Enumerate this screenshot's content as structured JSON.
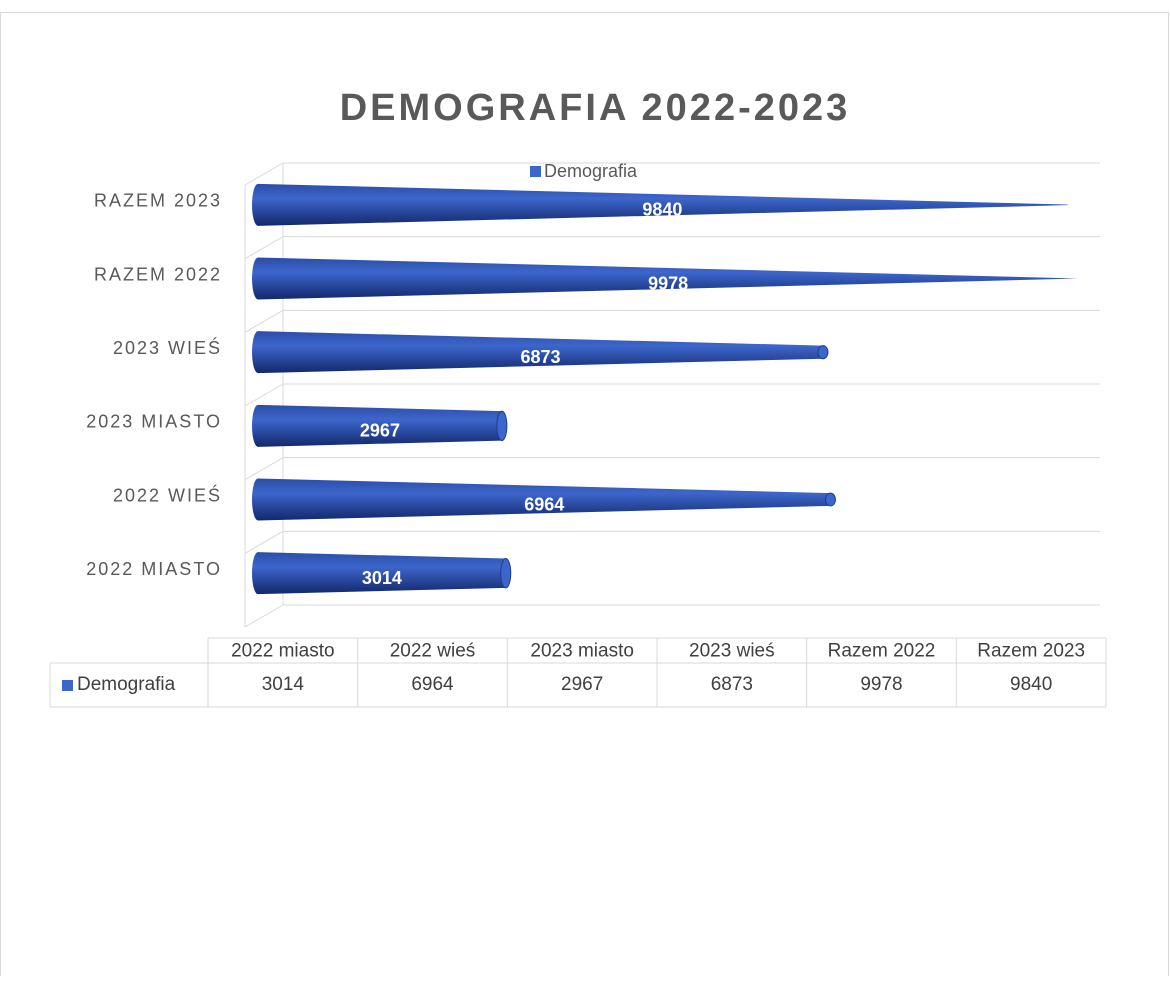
{
  "chart_data": {
    "type": "cone-bar",
    "title": "DEMOGRAFIA  2022-2023",
    "categories": [
      "2022 miasto",
      "2022 wieś",
      "2023 miasto",
      "2023 wieś",
      "Razem 2022",
      "Razem 2023"
    ],
    "category_labels": [
      "2022 MIASTO",
      "2022 WIEŚ",
      "2023 MIASTO",
      "2023 WIEŚ",
      "RAZEM 2022",
      "RAZEM 2023"
    ],
    "series": [
      {
        "name": "Demografia",
        "color": "#3d66cc",
        "values": [
          3014,
          6964,
          2967,
          6873,
          9978,
          9840
        ]
      }
    ],
    "xlim": [
      0,
      10000
    ],
    "legend": "top",
    "data_table": true
  }
}
